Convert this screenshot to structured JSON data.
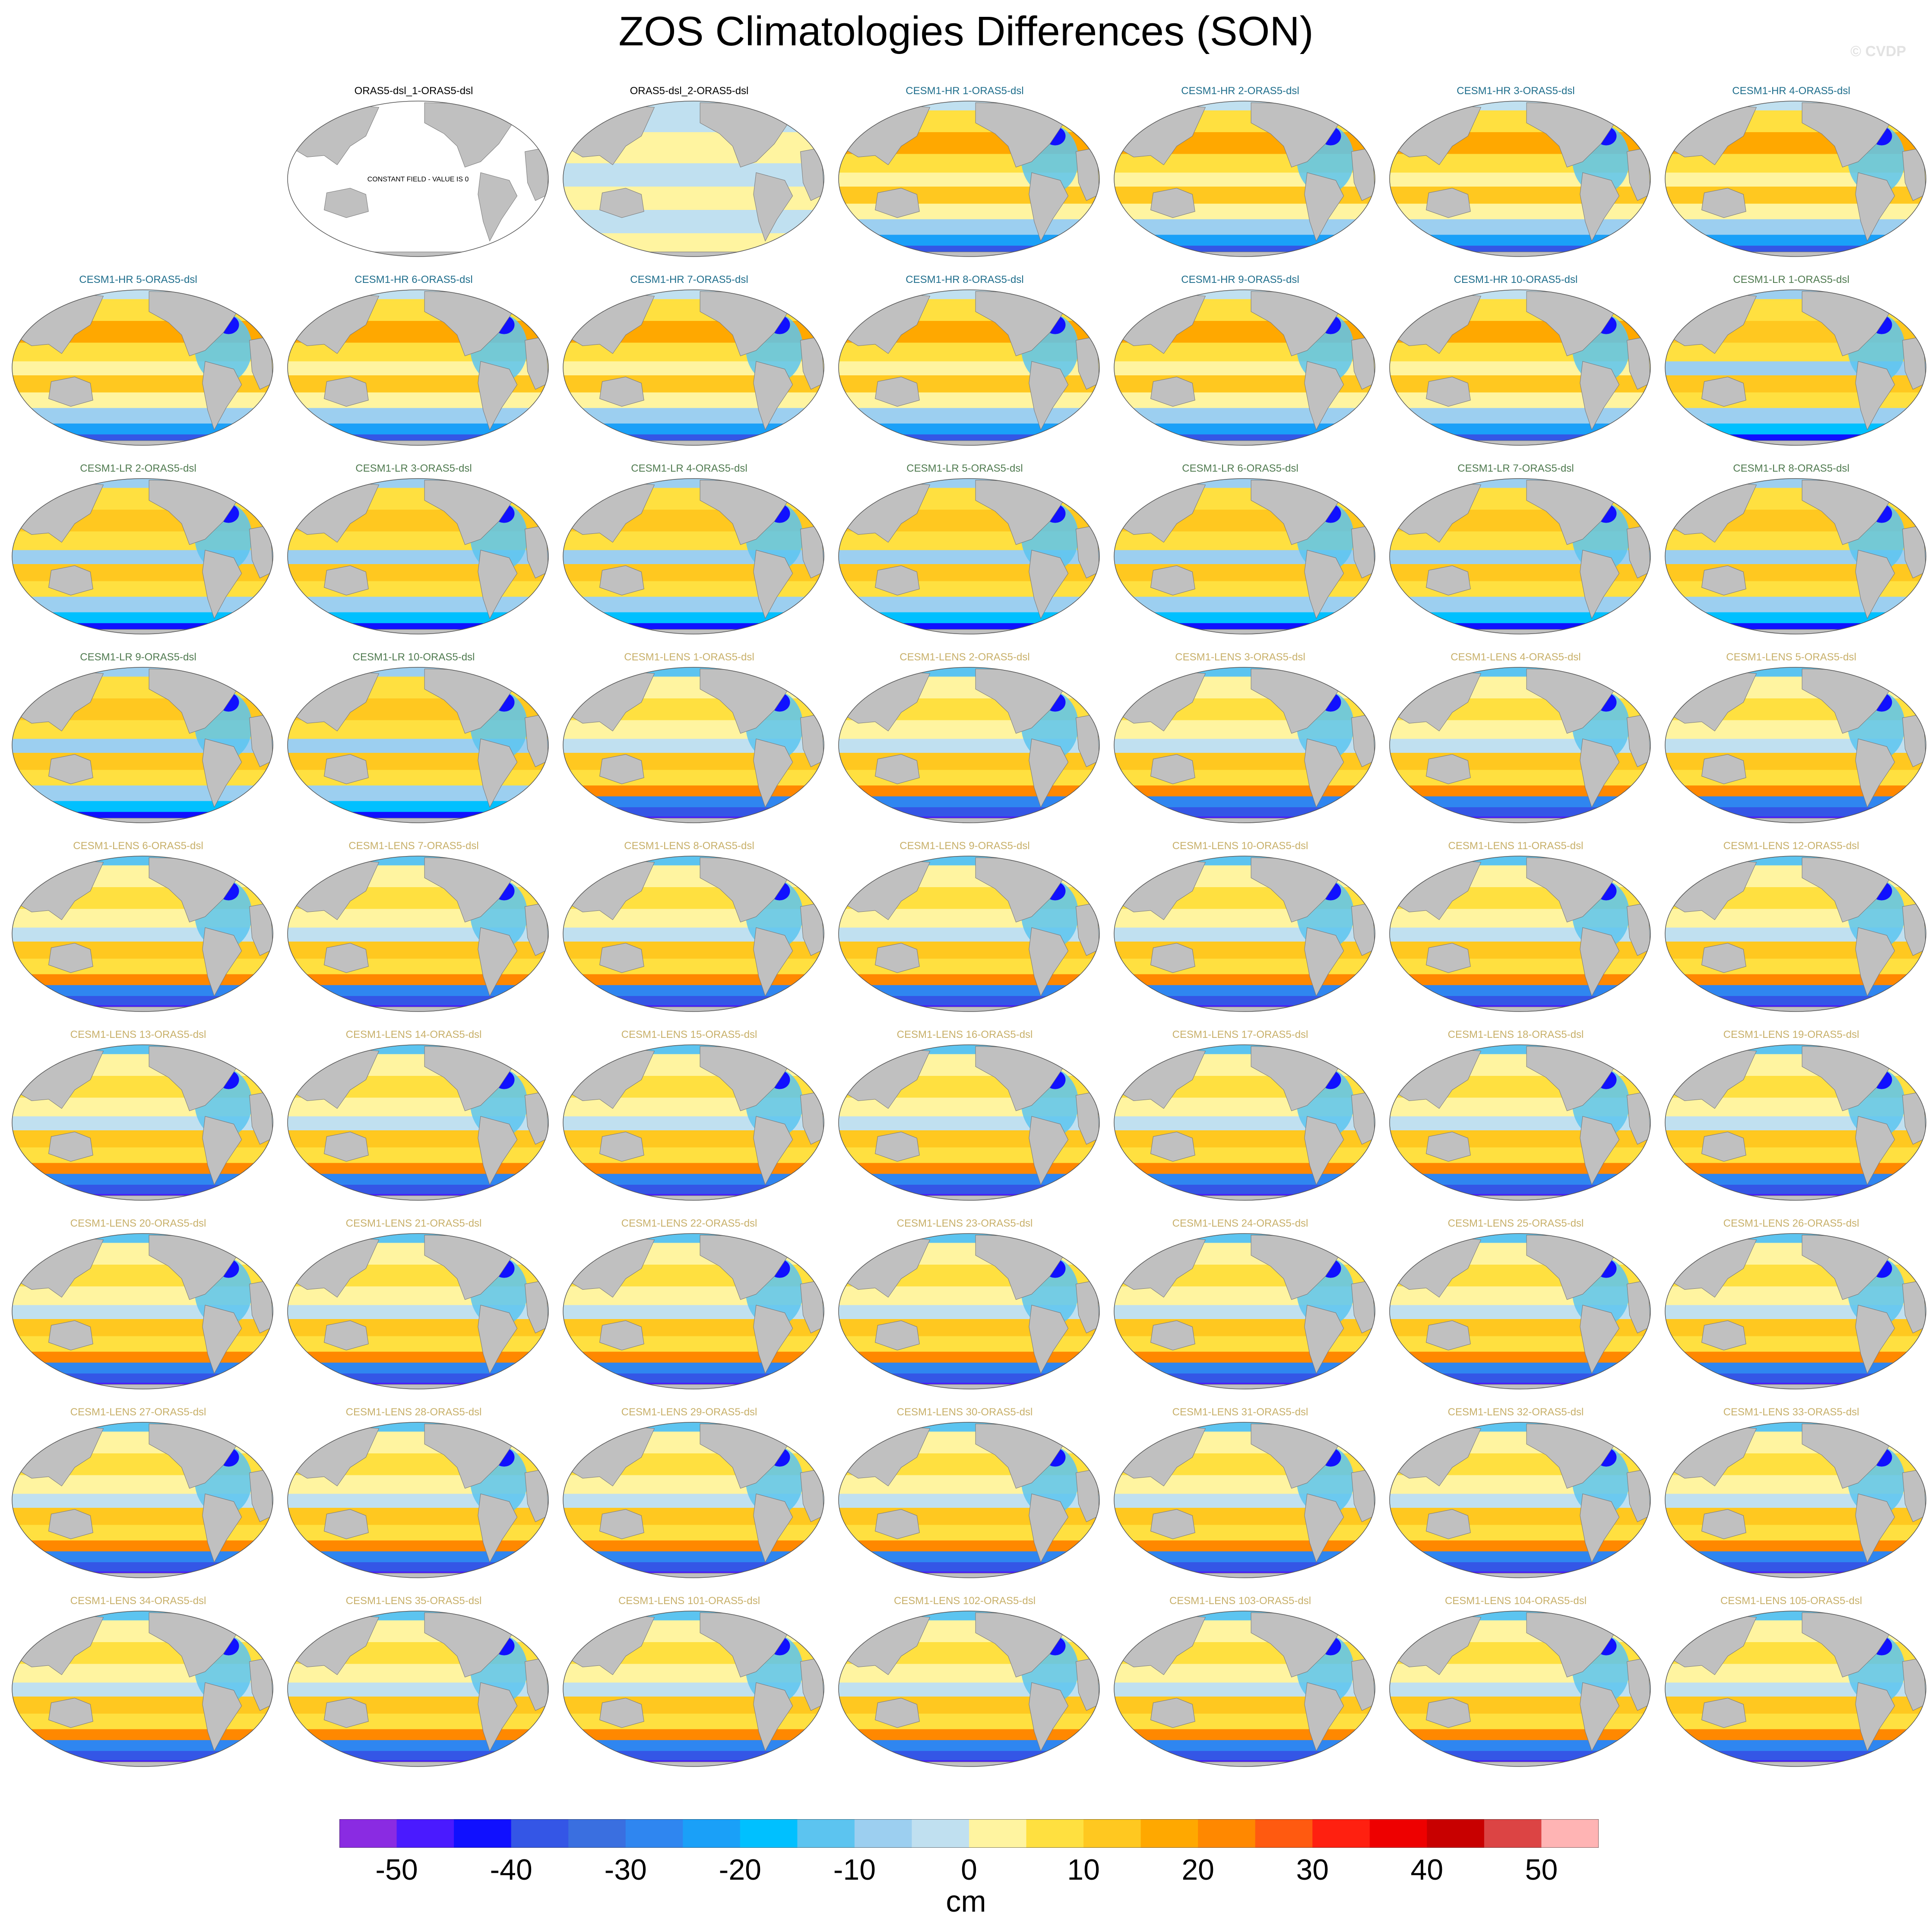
{
  "title": "ZOS Climatologies Differences (SON)",
  "watermark": "© CVDP",
  "colors": {
    "obs_title": "#000000",
    "hr_title": "#1f6e8c",
    "lr_title": "#4f7a4f",
    "lens_title": "#c8b06a",
    "land": "#c0c0c0",
    "constant_field": "#ffffff"
  },
  "panels": [
    {
      "label": "ORAS5-dsl_1-ORAS5-dsl",
      "group": "obs",
      "note": "CONSTANT FIELD - VALUE IS 0"
    },
    {
      "label": "ORAS5-dsl_2-ORAS5-dsl",
      "group": "obs2"
    },
    {
      "label": "CESM1-HR 1-ORAS5-dsl",
      "group": "hr"
    },
    {
      "label": "CESM1-HR 2-ORAS5-dsl",
      "group": "hr"
    },
    {
      "label": "CESM1-HR 3-ORAS5-dsl",
      "group": "hr"
    },
    {
      "label": "CESM1-HR 4-ORAS5-dsl",
      "group": "hr"
    },
    {
      "label": "CESM1-HR 5-ORAS5-dsl",
      "group": "hr"
    },
    {
      "label": "CESM1-HR 6-ORAS5-dsl",
      "group": "hr"
    },
    {
      "label": "CESM1-HR 7-ORAS5-dsl",
      "group": "hr"
    },
    {
      "label": "CESM1-HR 8-ORAS5-dsl",
      "group": "hr"
    },
    {
      "label": "CESM1-HR 9-ORAS5-dsl",
      "group": "hr"
    },
    {
      "label": "CESM1-HR 10-ORAS5-dsl",
      "group": "hr"
    },
    {
      "label": "CESM1-LR 1-ORAS5-dsl",
      "group": "lr"
    },
    {
      "label": "CESM1-LR 2-ORAS5-dsl",
      "group": "lr"
    },
    {
      "label": "CESM1-LR 3-ORAS5-dsl",
      "group": "lr"
    },
    {
      "label": "CESM1-LR 4-ORAS5-dsl",
      "group": "lr"
    },
    {
      "label": "CESM1-LR 5-ORAS5-dsl",
      "group": "lr"
    },
    {
      "label": "CESM1-LR 6-ORAS5-dsl",
      "group": "lr"
    },
    {
      "label": "CESM1-LR 7-ORAS5-dsl",
      "group": "lr"
    },
    {
      "label": "CESM1-LR 8-ORAS5-dsl",
      "group": "lr"
    },
    {
      "label": "CESM1-LR 9-ORAS5-dsl",
      "group": "lr"
    },
    {
      "label": "CESM1-LR 10-ORAS5-dsl",
      "group": "lr"
    },
    {
      "label": "CESM1-LENS 1-ORAS5-dsl",
      "group": "lens"
    },
    {
      "label": "CESM1-LENS 2-ORAS5-dsl",
      "group": "lens"
    },
    {
      "label": "CESM1-LENS 3-ORAS5-dsl",
      "group": "lens"
    },
    {
      "label": "CESM1-LENS 4-ORAS5-dsl",
      "group": "lens"
    },
    {
      "label": "CESM1-LENS 5-ORAS5-dsl",
      "group": "lens"
    },
    {
      "label": "CESM1-LENS 6-ORAS5-dsl",
      "group": "lens"
    },
    {
      "label": "CESM1-LENS 7-ORAS5-dsl",
      "group": "lens"
    },
    {
      "label": "CESM1-LENS 8-ORAS5-dsl",
      "group": "lens"
    },
    {
      "label": "CESM1-LENS 9-ORAS5-dsl",
      "group": "lens"
    },
    {
      "label": "CESM1-LENS 10-ORAS5-dsl",
      "group": "lens"
    },
    {
      "label": "CESM1-LENS 11-ORAS5-dsl",
      "group": "lens"
    },
    {
      "label": "CESM1-LENS 12-ORAS5-dsl",
      "group": "lens"
    },
    {
      "label": "CESM1-LENS 13-ORAS5-dsl",
      "group": "lens"
    },
    {
      "label": "CESM1-LENS 14-ORAS5-dsl",
      "group": "lens"
    },
    {
      "label": "CESM1-LENS 15-ORAS5-dsl",
      "group": "lens"
    },
    {
      "label": "CESM1-LENS 16-ORAS5-dsl",
      "group": "lens"
    },
    {
      "label": "CESM1-LENS 17-ORAS5-dsl",
      "group": "lens"
    },
    {
      "label": "CESM1-LENS 18-ORAS5-dsl",
      "group": "lens"
    },
    {
      "label": "CESM1-LENS 19-ORAS5-dsl",
      "group": "lens"
    },
    {
      "label": "CESM1-LENS 20-ORAS5-dsl",
      "group": "lens"
    },
    {
      "label": "CESM1-LENS 21-ORAS5-dsl",
      "group": "lens"
    },
    {
      "label": "CESM1-LENS 22-ORAS5-dsl",
      "group": "lens"
    },
    {
      "label": "CESM1-LENS 23-ORAS5-dsl",
      "group": "lens"
    },
    {
      "label": "CESM1-LENS 24-ORAS5-dsl",
      "group": "lens"
    },
    {
      "label": "CESM1-LENS 25-ORAS5-dsl",
      "group": "lens"
    },
    {
      "label": "CESM1-LENS 26-ORAS5-dsl",
      "group": "lens"
    },
    {
      "label": "CESM1-LENS 27-ORAS5-dsl",
      "group": "lens"
    },
    {
      "label": "CESM1-LENS 28-ORAS5-dsl",
      "group": "lens"
    },
    {
      "label": "CESM1-LENS 29-ORAS5-dsl",
      "group": "lens"
    },
    {
      "label": "CESM1-LENS 30-ORAS5-dsl",
      "group": "lens"
    },
    {
      "label": "CESM1-LENS 31-ORAS5-dsl",
      "group": "lens"
    },
    {
      "label": "CESM1-LENS 32-ORAS5-dsl",
      "group": "lens"
    },
    {
      "label": "CESM1-LENS 33-ORAS5-dsl",
      "group": "lens"
    },
    {
      "label": "CESM1-LENS 34-ORAS5-dsl",
      "group": "lens"
    },
    {
      "label": "CESM1-LENS 35-ORAS5-dsl",
      "group": "lens"
    },
    {
      "label": "CESM1-LENS 101-ORAS5-dsl",
      "group": "lens"
    },
    {
      "label": "CESM1-LENS 102-ORAS5-dsl",
      "group": "lens"
    },
    {
      "label": "CESM1-LENS 103-ORAS5-dsl",
      "group": "lens"
    },
    {
      "label": "CESM1-LENS 104-ORAS5-dsl",
      "group": "lens"
    },
    {
      "label": "CESM1-LENS 105-ORAS5-dsl",
      "group": "lens"
    }
  ],
  "chart_data": {
    "type": "heatmap",
    "title": "ZOS Climatologies Differences (SON)",
    "colorbar": {
      "unit": "cm",
      "ticks": [
        -50,
        -40,
        -30,
        -20,
        -10,
        0,
        10,
        20,
        30,
        40,
        50
      ],
      "tick_labels": [
        "-50",
        "-40",
        "-30",
        "-20",
        "-10",
        "0",
        "10",
        "20",
        "30",
        "40",
        "50"
      ],
      "boundaries": [
        -50,
        -45,
        -40,
        -35,
        -30,
        -25,
        -20,
        -15,
        -10,
        -5,
        0,
        5,
        10,
        15,
        20,
        25,
        30,
        35,
        40,
        45,
        50
      ],
      "colors": [
        "#8a2be2",
        "#4a1aff",
        "#1010ff",
        "#3456e6",
        "#3a6fe0",
        "#2f86f0",
        "#1aa0f8",
        "#00c0ff",
        "#5cc4f0",
        "#9ccff0",
        "#c0e0f0",
        "#fff4a0",
        "#ffe040",
        "#ffc820",
        "#ffa800",
        "#ff8800",
        "#ff5a10",
        "#ff2010",
        "#ee0000",
        "#c80000",
        "#dc4444",
        "#ffb4b4"
      ],
      "orientation": "horizontal",
      "placement": "bottom"
    }
  }
}
